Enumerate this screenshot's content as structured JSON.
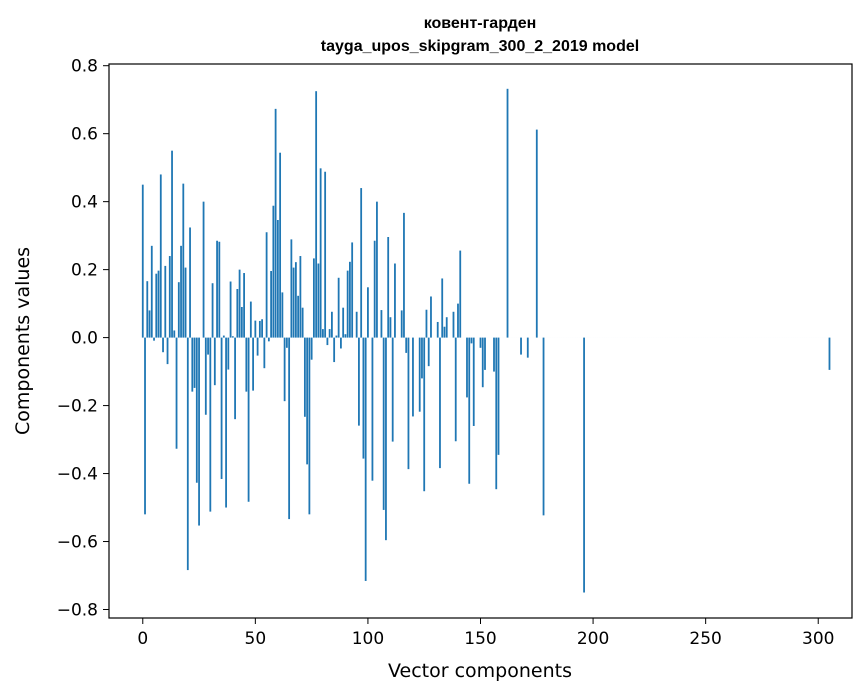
{
  "chart_data": {
    "type": "bar",
    "title": "ковент-гарден",
    "subtitle": "tayga_upos_skipgram_300_2_2019 model",
    "xlabel": "Vector components",
    "ylabel": "Components values",
    "xlim": [
      -15,
      315
    ],
    "ylim": [
      -0.825,
      0.805
    ],
    "x_ticks": [
      0,
      50,
      100,
      150,
      200,
      250,
      300
    ],
    "y_ticks": [
      0.8,
      0.6,
      0.4,
      0.2,
      0.0,
      -0.2,
      -0.4,
      -0.6,
      -0.8
    ],
    "y_tick_labels": [
      "0.8",
      "0.6",
      "0.4",
      "0.2",
      "0.0",
      "−0.2",
      "−0.4",
      "−0.6",
      "−0.8"
    ],
    "bar_color": "#1f77b4",
    "series": [
      {
        "name": "ковент-гарден",
        "values": [
          0.45,
          -0.52,
          0.166,
          0.08,
          0.27,
          -0.009,
          0.188,
          0.197,
          0.48,
          -0.043,
          0.211,
          -0.078,
          0.24,
          0.55,
          0.021,
          -0.327,
          0.163,
          0.27,
          0.453,
          0.206,
          -0.684,
          0.324,
          -0.159,
          -0.148,
          -0.427,
          -0.553,
          0.0,
          0.4,
          -0.227,
          -0.05,
          -0.512,
          0.16,
          -0.14,
          0.285,
          0.282,
          -0.416,
          0.006,
          -0.5,
          -0.094,
          0.165,
          0.004,
          -0.24,
          0.143,
          0.2,
          0.09,
          0.19,
          -0.159,
          -0.483,
          0.106,
          -0.156,
          0.05,
          -0.053,
          0.049,
          0.054,
          -0.09,
          0.31,
          -0.011,
          0.196,
          0.388,
          0.673,
          0.346,
          0.544,
          0.133,
          -0.187,
          -0.03,
          -0.534,
          0.289,
          0.206,
          0.222,
          0.123,
          0.24,
          0.088,
          -0.233,
          -0.373,
          -0.52,
          -0.065,
          0.233,
          0.725,
          0.218,
          0.498,
          0.025,
          0.488,
          -0.022,
          0.025,
          0.076,
          -0.072,
          0.006,
          0.176,
          -0.032,
          0.088,
          0.01,
          0.197,
          0.223,
          0.28,
          0.0,
          0.076,
          -0.259,
          0.44,
          -0.356,
          -0.716,
          0.148,
          0.0,
          -0.421,
          0.285,
          0.4,
          0.0,
          0.081,
          -0.507,
          -0.596,
          0.296,
          0.06,
          -0.306,
          0.218,
          0.0,
          0.0,
          0.08,
          0.367,
          -0.045,
          -0.387,
          0.0,
          -0.232,
          0.0,
          0.0,
          -0.218,
          -0.12,
          -0.452,
          0.082,
          -0.084,
          0.121,
          0.0,
          0.0,
          0.046,
          -0.384,
          0.174,
          0.032,
          0.06,
          0.0,
          0.0,
          0.076,
          -0.305,
          0.1,
          0.256,
          0.0,
          0.0,
          -0.176,
          -0.43,
          -0.017,
          -0.26,
          0.0,
          0.0,
          -0.03,
          -0.146,
          -0.095,
          0.0,
          0.0,
          0.0,
          -0.1,
          -0.446,
          -0.345,
          0.0,
          0.0,
          0.0,
          0.732,
          0.0,
          0.0,
          0.0,
          0.0,
          0.0,
          -0.05,
          0.0,
          0.0,
          -0.059,
          0.0,
          0.0,
          0.0,
          0.612,
          0.0,
          0.0,
          -0.523,
          0.0,
          0.0,
          0.0,
          0.0,
          0.0,
          0.0,
          0.0,
          0.0,
          0.0,
          0.0,
          0.0,
          0.0,
          0.0,
          0.0,
          0.0,
          0.0,
          0.0,
          -0.75,
          0.0,
          0.0,
          0.0,
          0.0,
          0.0,
          0.0,
          0.0,
          0.0,
          0.0,
          0.0,
          0.0,
          0.0,
          0.0,
          0.0,
          0.0,
          0.0,
          0.0,
          0.0,
          0.0,
          0.0,
          0.0,
          0.0,
          0.0,
          0.0,
          0.0,
          0.0,
          0.0,
          0.0,
          0.0,
          0.0,
          0.0,
          0.0,
          0.0,
          0.0,
          0.0,
          0.0,
          0.0,
          0.0,
          0.0,
          0.0,
          0.0,
          0.0,
          0.0,
          0.0,
          0.0,
          0.0,
          0.0,
          0.0,
          0.0,
          0.0,
          0.0,
          0.0,
          0.0,
          0.0,
          0.0,
          0.0,
          0.0,
          0.0,
          0.0,
          0.0,
          0.0,
          0.0,
          0.0,
          0.0,
          0.0,
          0.0,
          0.0,
          0.0,
          0.0,
          0.0,
          0.0,
          0.0,
          0.0,
          0.0,
          0.0,
          0.0,
          0.0,
          0.0,
          0.0,
          0.0,
          0.0,
          0.0,
          0.0,
          0.0,
          0.0,
          0.0,
          0.0,
          0.0,
          0.0,
          0.0,
          0.0,
          0.0,
          0.0,
          0.0,
          0.0,
          0.0,
          0.0,
          0.0,
          0.0,
          0.0,
          0.0,
          0.0,
          0.0,
          0.0,
          0.0,
          0.0,
          0.0,
          0.0,
          -0.095
        ]
      }
    ]
  }
}
